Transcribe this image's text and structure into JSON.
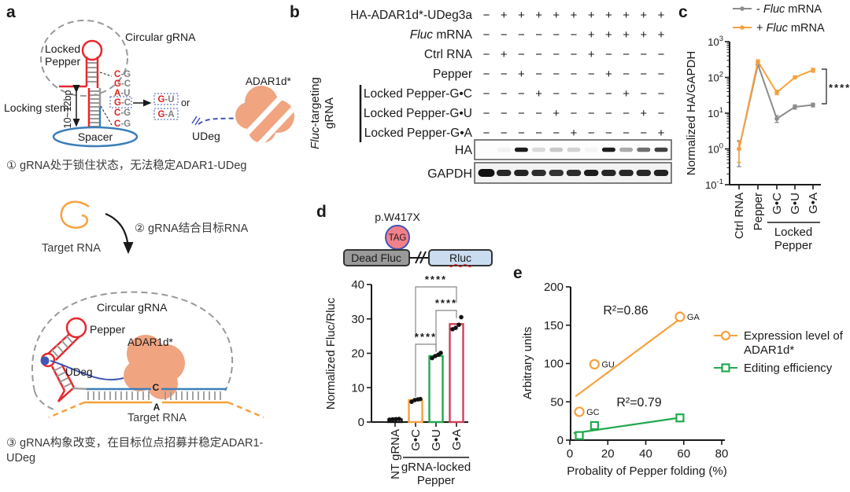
{
  "colors": {
    "orange": "#F7A13C",
    "gray_series": "#8C8C8C",
    "green": "#22A94F",
    "crimson": "#CE4257",
    "pepper_red": "#E8282D",
    "spacer_blue": "#3C7EB8",
    "udeg_blue": "#4156B5",
    "adar_salmon": "#F0A480",
    "dashed_gray": "#999999",
    "tag_pink": "#F2808A",
    "rluc_blue": "#C9DCF0",
    "deadfluc_gray": "#9A9A9A",
    "base_red": "#E02020",
    "base_gray": "#808080"
  },
  "panel_a": {
    "label": "a",
    "circular_grna_top": "Circular gRNA",
    "locked_line1": "Locked",
    "locked_line2": "Pepper",
    "locking_stem": "Locking stem",
    "stem_length": "10~12bp",
    "spacer": "Spacer",
    "base_pairs": [
      {
        "left": "C",
        "right": "G",
        "boxed": false
      },
      {
        "left": "G",
        "right": "C",
        "boxed": false
      },
      {
        "left": "A",
        "right": "U",
        "boxed": false
      },
      {
        "left": "G",
        "right": "C",
        "boxed": true
      },
      {
        "left": "C",
        "right": "G",
        "boxed": false
      },
      {
        "left": "C",
        "right": "G",
        "boxed": false
      }
    ],
    "mutant_pairs": [
      {
        "left": "G",
        "right": "U"
      },
      {
        "left": "G",
        "right": "A"
      }
    ],
    "or_label": "or",
    "udeg_top": "UDeg",
    "adar_top": "ADAR1d*",
    "caption1": "① gRNA处于锁住状态，无法稳定ADAR1-UDeg",
    "target_rna_mid": "Target RNA",
    "step2": "② gRNA结合目标RNA",
    "circular_grna_bottom": "Circular gRNA",
    "pepper_bottom": "Pepper",
    "adar_bottom": "ADAR1d*",
    "udeg_bottom": "UDeg",
    "edited_c": "C",
    "target_a": "A",
    "target_rna_bottom": "Target RNA",
    "caption3_line1": "③ gRNA构象改变，在目标位点招募并稳定ADAR1-",
    "caption3_line2": "UDeg"
  },
  "panel_b": {
    "label": "b",
    "rows": [
      {
        "pre": "HA-ADAR1d*-UDeg3a",
        "it": "",
        "post": "",
        "signs": [
          "−",
          "+",
          "+",
          "+",
          "+",
          "+",
          "+",
          "+",
          "+",
          "+",
          "+"
        ]
      },
      {
        "pre": "",
        "it": "Fluc",
        "post": " mRNA",
        "signs": [
          "−",
          "−",
          "−",
          "−",
          "−",
          "−",
          "+",
          "+",
          "+",
          "+",
          "+"
        ]
      },
      {
        "pre": "Ctrl RNA",
        "it": "",
        "post": "",
        "signs": [
          "−",
          "+",
          "−",
          "−",
          "−",
          "−",
          "+",
          "−",
          "−",
          "−",
          "−"
        ]
      },
      {
        "pre": "Pepper",
        "it": "",
        "post": "",
        "signs": [
          "−",
          "−",
          "+",
          "−",
          "−",
          "−",
          "−",
          "+",
          "−",
          "−",
          "−"
        ]
      },
      {
        "pre": "Locked Pepper-G•C",
        "it": "",
        "post": "",
        "signs": [
          "−",
          "−",
          "−",
          "+",
          "−",
          "−",
          "−",
          "−",
          "+",
          "−",
          "−"
        ]
      },
      {
        "pre": "Locked Pepper-G•U",
        "it": "",
        "post": "",
        "signs": [
          "−",
          "−",
          "−",
          "−",
          "+",
          "−",
          "−",
          "−",
          "−",
          "+",
          "−"
        ]
      },
      {
        "pre": "Locked Pepper-G•A",
        "it": "",
        "post": "",
        "signs": [
          "−",
          "−",
          "−",
          "−",
          "−",
          "+",
          "−",
          "−",
          "−",
          "−",
          "+"
        ]
      }
    ],
    "group_it": "Fluc",
    "group_post": "-targeting",
    "group_line2": "gRNA",
    "blots": [
      {
        "label": "HA",
        "bands": [
          0,
          0.05,
          0.95,
          0.15,
          0.22,
          0.18,
          0.04,
          0.95,
          0.35,
          0.6,
          0.8
        ]
      },
      {
        "label": "GAPDH",
        "bands": [
          1,
          0.9,
          0.92,
          0.88,
          0.85,
          0.88,
          0.95,
          0.9,
          0.9,
          0.9,
          0.92
        ]
      }
    ]
  },
  "panel_c": {
    "label": "c",
    "legend": [
      {
        "prefix": "- ",
        "it": "Fluc",
        "post": " mRNA",
        "color": "#8C8C8C"
      },
      {
        "prefix": "+ ",
        "it": "Fluc",
        "post": " mRNA",
        "color": "#F7A13C"
      }
    ],
    "ylabel": "Normalized HA/GAPDH",
    "group_line1": "Locked",
    "group_line2": "Pepper"
  },
  "panel_d": {
    "label": "d",
    "mutation": "p.W417X",
    "codon": "TAG",
    "gene1": "Dead Fluc",
    "gene2": "Rluc",
    "ylabel": "Normalized Fluc/Rluc",
    "group_line1": "gRNA-locked",
    "group_line2": "Pepper"
  },
  "panel_e": {
    "label": "e",
    "ylabel": "Arbitrary units",
    "xlabel": "Probality of Pepper folding (%)",
    "legend1_line1": "Expression level of",
    "legend1_line2": "ADAR1d*",
    "legend2": "Editing efficiency"
  },
  "chart_data": [
    {
      "panel": "c",
      "type": "line",
      "yscale": "log",
      "ylim": [
        0.1,
        1000
      ],
      "yticks_exp": [
        3,
        2,
        1,
        0,
        -1
      ],
      "categories": [
        "Ctrl RNA",
        "Pepper",
        "G•C",
        "G•U",
        "G•A"
      ],
      "group_label": "Locked Pepper",
      "group_span": [
        2,
        4
      ],
      "ylabel": "Normalized HA/GAPDH",
      "series": [
        {
          "name": "- Fluc mRNA",
          "color": "#8C8C8C",
          "values": [
            1.0,
            230,
            7,
            15,
            17
          ],
          "err_lo": [
            0.32,
            205,
            5.5,
            13,
            15
          ],
          "err_hi": [
            1.7,
            260,
            8.5,
            17,
            19
          ]
        },
        {
          "name": "+ Fluc mRNA",
          "color": "#F7A13C",
          "values": [
            1.0,
            280,
            38,
            100,
            160
          ],
          "err_lo": [
            0.42,
            255,
            33,
            92,
            140
          ],
          "err_hi": [
            1.6,
            310,
            44,
            110,
            180
          ]
        }
      ],
      "significance": "****"
    },
    {
      "panel": "d",
      "type": "bar",
      "categories": [
        "NT gRNA",
        "G•C",
        "G•U",
        "G•A"
      ],
      "values": [
        0.8,
        6.4,
        19.2,
        28.5
      ],
      "bar_colors": [
        "#111111",
        "#F7A13C",
        "#22A94F",
        "#CE4257"
      ],
      "points": [
        [
          0.7,
          0.8,
          0.85,
          0.9
        ],
        [
          5.9,
          6.4,
          6.6,
          6.7
        ],
        [
          18.6,
          19.2,
          19.6,
          20.1
        ],
        [
          27,
          27.4,
          28.3,
          30.5
        ]
      ],
      "ylabel": "Normalized Fluc/Rluc",
      "ylim": [
        0,
        40
      ],
      "yticks": [
        0,
        10,
        20,
        30,
        40
      ],
      "group_label": "gRNA-locked Pepper",
      "group_span": [
        1,
        3
      ],
      "significance": [
        {
          "from": 1,
          "to": 3,
          "stars": "****"
        },
        {
          "from": 2,
          "to": 3,
          "stars": "****"
        },
        {
          "from": 1,
          "to": 2,
          "stars": "****"
        }
      ]
    },
    {
      "panel": "e",
      "type": "scatter",
      "xlabel": "Probality of Pepper folding (%)",
      "ylabel": "Arbitrary units",
      "xlim": [
        0,
        80
      ],
      "ylim": [
        0,
        200
      ],
      "xticks": [
        0,
        20,
        40,
        60,
        80
      ],
      "yticks": [
        0,
        50,
        100,
        150,
        200
      ],
      "series": [
        {
          "name": "Expression level of ADAR1d*",
          "color": "#F7A13C",
          "marker": "circle",
          "r2": "R²=0.86",
          "points": [
            {
              "x": 5,
              "y": 37,
              "label": "GC"
            },
            {
              "x": 13,
              "y": 99,
              "label": "GU"
            },
            {
              "x": 58,
              "y": 161,
              "label": "GA"
            }
          ],
          "fit": {
            "x1": 3,
            "y1": 57,
            "x2": 59,
            "y2": 160
          }
        },
        {
          "name": "Editing efficiency",
          "color": "#22A94F",
          "marker": "square",
          "r2": "R²=0.79",
          "points": [
            {
              "x": 5,
              "y": 6,
              "label": ""
            },
            {
              "x": 13,
              "y": 19,
              "label": ""
            },
            {
              "x": 58,
              "y": 29,
              "label": ""
            }
          ],
          "fit": {
            "x1": 2,
            "y1": 9,
            "x2": 60,
            "y2": 30
          }
        }
      ]
    }
  ]
}
